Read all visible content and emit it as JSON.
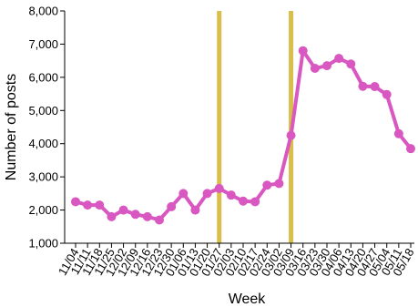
{
  "chart_data": {
    "type": "line",
    "xlabel": "Week",
    "ylabel": "Number of posts",
    "ylim": [
      1000,
      8000
    ],
    "yticks": [
      1000,
      2000,
      3000,
      4000,
      5000,
      6000,
      7000,
      8000
    ],
    "ytick_labels": [
      "1,000",
      "2,000",
      "3,000",
      "4,000",
      "5,000",
      "6,000",
      "7,000",
      "8,000"
    ],
    "categories": [
      "11/04",
      "11/11",
      "11/18",
      "11/25",
      "12/02",
      "12/09",
      "12/16",
      "12/23",
      "12/30",
      "01/06",
      "01/13",
      "01/20",
      "01/27",
      "02/03",
      "02/10",
      "02/17",
      "02/24",
      "03/02",
      "03/09",
      "03/16",
      "03/23",
      "03/30",
      "04/06",
      "04/13",
      "04/20",
      "04/27",
      "05/04",
      "05/11",
      "05/18"
    ],
    "series": [
      {
        "color": "#d957c0",
        "values": [
          2250,
          2150,
          2150,
          1800,
          2000,
          1870,
          1800,
          1700,
          2100,
          2500,
          2000,
          2500,
          2650,
          2450,
          2270,
          2250,
          2750,
          2800,
          4250,
          6800,
          6270,
          6350,
          6570,
          6400,
          5730,
          5720,
          5480,
          4300,
          3850
        ]
      }
    ],
    "vertical_lines": [
      {
        "category": "01/27",
        "color": "#d9be4a"
      },
      {
        "category": "03/09",
        "color": "#d9be4a"
      }
    ],
    "grid": false,
    "legend": "none"
  }
}
